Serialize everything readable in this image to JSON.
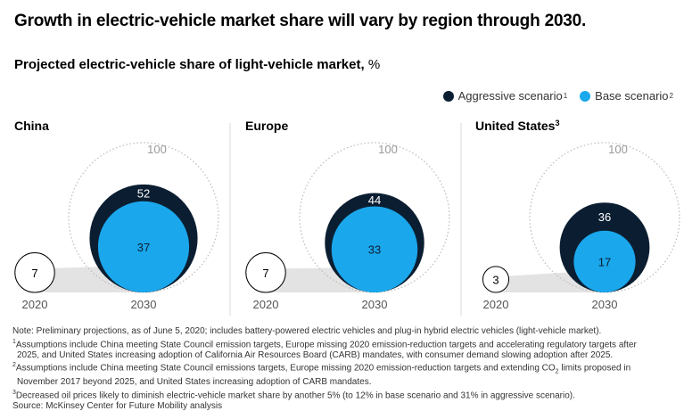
{
  "title": "Growth in electric-vehicle market share will vary by region through 2030.",
  "subtitle": "Projected electric-vehicle share of light-vehicle market,",
  "subtitle_unit": "%",
  "colors": {
    "aggressive": "#0b1e31",
    "base": "#1aa7ec",
    "ring": "#bbbbbb",
    "wedge": "#e3e3e3",
    "outline": "#000000"
  },
  "legend": {
    "aggressive_label": "Aggressive scenario",
    "aggressive_note": "1",
    "base_label": "Base scenario",
    "base_note": "2"
  },
  "chart_data": {
    "type": "proportional-circles",
    "title": "Projected electric-vehicle share of light-vehicle market, %",
    "reference_value": 100,
    "years": [
      "2020",
      "2030"
    ],
    "panels": [
      {
        "region": "China",
        "note": "",
        "values_2020": 7,
        "aggressive_2030": 52,
        "base_2030": 37
      },
      {
        "region": "Europe",
        "note": "",
        "values_2020": 7,
        "aggressive_2030": 44,
        "base_2030": 33
      },
      {
        "region": "United States",
        "note": "3",
        "values_2020": 3,
        "aggressive_2030": 36,
        "base_2030": 17
      }
    ]
  },
  "footnotes": {
    "note": "Note: Preliminary projections, as of June 5, 2020; includes battery-powered electric vehicles and plug-in hybrid electric vehicles (light-vehicle market).",
    "fn1_mark": "1",
    "fn1_a": "Assumptions include China meeting State Council emission targets, Europe missing 2020 emission-reduction targets and accelerating regulatory targets after",
    "fn1_b": "2025, and United States increasing adoption of California Air Resources Board (CARB) mandates, with consumer demand slowing adoption after 2025.",
    "fn2_mark": "2",
    "fn2_a1": "Assumptions include China meeting State Council emissions targets, Europe missing 2020 emission-reduction targets and extending CO",
    "fn2_sub": "2",
    "fn2_a2": " limits proposed in",
    "fn2_b": "November 2017 beyond 2025, and United States increasing adoption of CARB mandates.",
    "fn3_mark": "3",
    "fn3": "Decreased oil prices likely to diminish electric-vehicle market share by another 5% (to 12% in base scenario and 31% in aggressive scenario).",
    "source": "Source: McKinsey Center for Future Mobility analysis"
  }
}
